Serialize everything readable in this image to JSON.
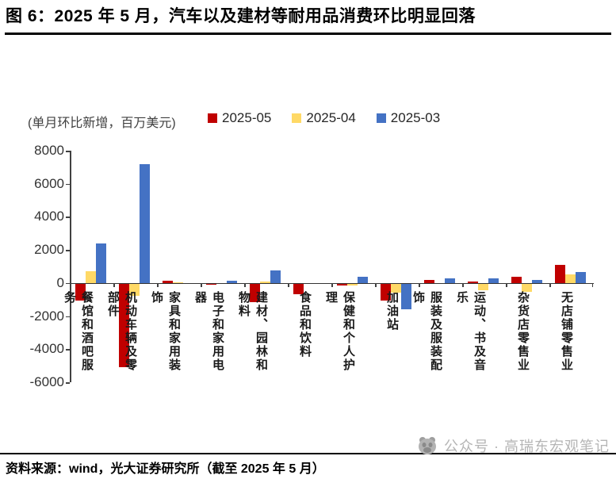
{
  "header": {
    "title": "图 6：2025 年 5 月，汽车以及建材等耐用品消费环比明显回落"
  },
  "chart_data": {
    "type": "bar",
    "title": "图 6：2025 年 5 月，汽车以及建材等耐用品消费环比明显回落",
    "unit_label": "(单月环比新增，百万美元)",
    "categories": [
      "餐馆和酒吧服务",
      "机动车辆及零部件",
      "家具和家用装饰",
      "电子和家用电器",
      "建材、园林和物料",
      "食品和饮料",
      "保健和个人护理",
      "加油站",
      "服装及服装配饰",
      "运动、书及音乐",
      "杂货店零售业",
      "无店铺零售业"
    ],
    "series": [
      {
        "name": "2025-05",
        "color": "#C00000",
        "values": [
          -1000,
          -5000,
          150,
          -50,
          -1100,
          -600,
          -100,
          -1000,
          200,
          100,
          400,
          1100
        ]
      },
      {
        "name": "2025-04",
        "color": "#FFD966",
        "values": [
          700,
          -700,
          50,
          0,
          100,
          0,
          -100,
          -500,
          0,
          -350,
          -450,
          500
        ]
      },
      {
        "name": "2025-03",
        "color": "#4472C4",
        "values": [
          2400,
          7200,
          0,
          150,
          750,
          0,
          400,
          -1500,
          300,
          300,
          200,
          650
        ]
      }
    ],
    "ylim": [
      -6000,
      8000
    ],
    "ytick_step": 2000,
    "grid": false,
    "legend_position": "top"
  },
  "footer": {
    "source": "资料来源：wind，光大证券研究所（截至 2025 年 5 月）",
    "watermark": "公众号 · 高瑞东宏观笔记"
  }
}
